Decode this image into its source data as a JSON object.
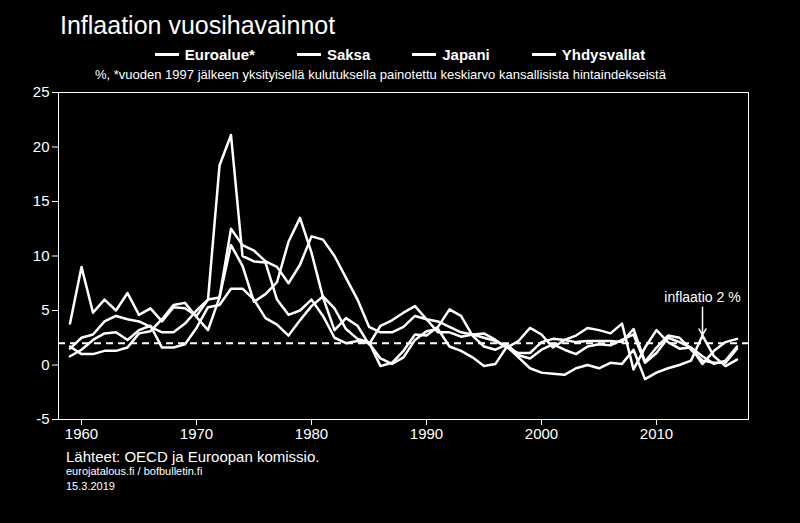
{
  "chart_data": {
    "type": "line",
    "title": "Inflaation vuosihavainnot",
    "subtitle": "%, *vuoden 1997 jälkeen yksityisellä kulutuksella painotettu keskiarvo kansallisista hintaindekseistä",
    "x": [
      1959,
      1960,
      1961,
      1962,
      1963,
      1964,
      1965,
      1966,
      1967,
      1968,
      1969,
      1970,
      1971,
      1972,
      1973,
      1974,
      1975,
      1976,
      1977,
      1978,
      1979,
      1980,
      1981,
      1982,
      1983,
      1984,
      1985,
      1986,
      1987,
      1988,
      1989,
      1990,
      1991,
      1992,
      1993,
      1994,
      1995,
      1996,
      1997,
      1998,
      1999,
      2000,
      2001,
      2002,
      2003,
      2004,
      2005,
      2006,
      2007,
      2008,
      2009,
      2010,
      2011,
      2012,
      2013,
      2014,
      2015,
      2016,
      2017
    ],
    "xlim": [
      1958,
      2018
    ],
    "xticks": [
      1960,
      1970,
      1980,
      1990,
      2000,
      2010
    ],
    "ylim": [
      -5,
      25
    ],
    "yticks": [
      -5,
      0,
      5,
      10,
      15,
      20,
      25
    ],
    "grid": false,
    "series": [
      {
        "name": "Euroalue*",
        "color": "#ffffff",
        "values": [
          1.5,
          2.5,
          2.8,
          4.0,
          4.5,
          4.2,
          4.0,
          3.5,
          3.0,
          3.0,
          3.8,
          5.0,
          6.0,
          6.2,
          12.5,
          11.0,
          10.5,
          9.5,
          9.0,
          7.5,
          9.2,
          11.8,
          11.5,
          10.0,
          8.0,
          6.0,
          3.5,
          3.0,
          3.0,
          3.5,
          4.5,
          4.2,
          4.0,
          3.5,
          3.0,
          2.8,
          2.5,
          2.2,
          1.6,
          1.1,
          1.1,
          2.1,
          2.4,
          2.3,
          2.1,
          2.2,
          2.2,
          2.2,
          2.1,
          3.3,
          0.3,
          1.6,
          2.7,
          2.5,
          1.4,
          0.4,
          0.2,
          0.2,
          1.5
        ]
      },
      {
        "name": "Saksa",
        "color": "#ffffff",
        "values": [
          0.8,
          1.4,
          2.3,
          2.9,
          3.0,
          2.3,
          3.2,
          3.6,
          1.6,
          1.6,
          1.9,
          3.4,
          5.3,
          5.5,
          7.0,
          7.0,
          6.0,
          4.3,
          3.7,
          2.7,
          4.1,
          5.4,
          6.3,
          5.2,
          3.3,
          2.4,
          2.1,
          -0.1,
          0.2,
          1.3,
          2.8,
          2.7,
          3.5,
          5.1,
          4.5,
          2.7,
          1.7,
          1.4,
          1.9,
          0.9,
          0.6,
          1.4,
          1.9,
          1.4,
          1.0,
          1.7,
          1.9,
          1.8,
          2.3,
          2.8,
          0.2,
          1.1,
          2.5,
          2.1,
          1.6,
          0.8,
          0.1,
          0.4,
          1.7
        ]
      },
      {
        "name": "Japani",
        "color": "#ffffff",
        "values": [
          3.8,
          9.0,
          4.8,
          6.0,
          5.0,
          6.6,
          4.6,
          5.2,
          4.0,
          5.3,
          5.2,
          4.5,
          6.0,
          18.3,
          21.1,
          10.0,
          9.5,
          9.4,
          6.0,
          4.6,
          5.0,
          6.0,
          4.5,
          2.5,
          2.0,
          2.2,
          2.0,
          0.6,
          0.1,
          0.7,
          2.3,
          3.1,
          3.3,
          1.7,
          1.3,
          0.7,
          -0.1,
          0.1,
          1.7,
          0.7,
          -0.3,
          -0.7,
          -0.8,
          -0.9,
          -0.3,
          0.0,
          -0.3,
          0.2,
          0.1,
          1.4,
          -1.3,
          -0.7,
          -0.3,
          0.0,
          0.4,
          2.7,
          0.8,
          -0.1,
          0.5
        ]
      },
      {
        "name": "Yhdysvallat",
        "color": "#ffffff",
        "values": [
          1.7,
          1.0,
          1.0,
          1.3,
          1.3,
          1.6,
          2.9,
          3.1,
          4.2,
          5.5,
          5.7,
          4.4,
          3.2,
          6.2,
          11.0,
          9.1,
          5.8,
          6.5,
          7.6,
          11.3,
          13.5,
          10.3,
          6.2,
          3.2,
          4.3,
          3.6,
          1.9,
          3.6,
          4.1,
          4.8,
          5.4,
          4.2,
          3.0,
          3.0,
          2.6,
          2.8,
          2.9,
          2.3,
          1.6,
          2.2,
          3.4,
          2.8,
          1.6,
          2.3,
          2.7,
          3.4,
          3.2,
          2.9,
          3.8,
          -0.4,
          1.6,
          3.2,
          2.1,
          1.5,
          1.6,
          0.1,
          1.3,
          2.1,
          2.4
        ]
      }
    ],
    "reference_line": {
      "value": 2,
      "line_style": "dashed",
      "color": "#ffffff"
    },
    "annotation": {
      "text": "inflaatio 2 %",
      "x": 2014,
      "y": 2
    },
    "source": "Lähteet: OECD ja Euroopan komissio.",
    "notes": [
      "eurojatalous.fi / bofbulletin.fi",
      "15.3.2019"
    ]
  }
}
